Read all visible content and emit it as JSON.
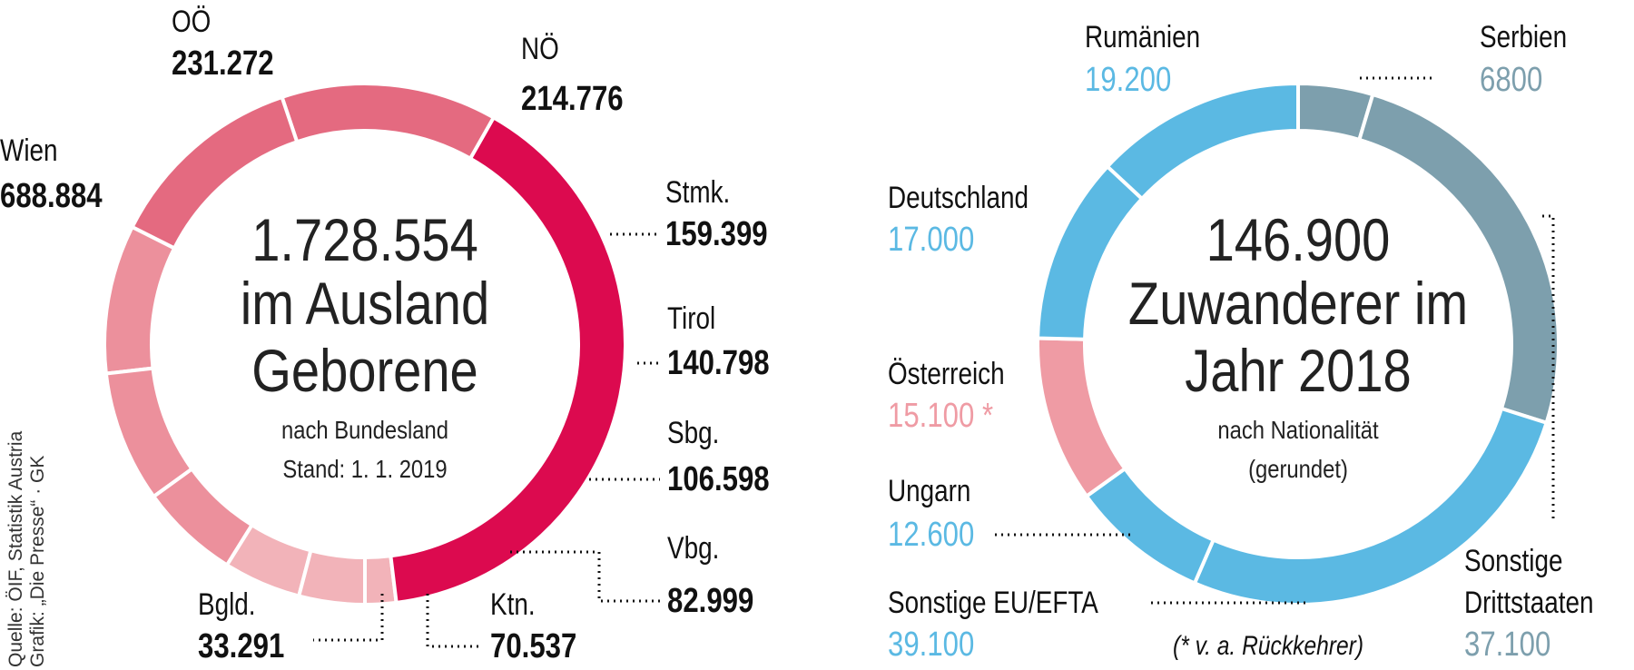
{
  "chart_data": [
    {
      "type": "pie",
      "variant": "donut",
      "center_title": "1.728.554",
      "center_lines": [
        "im Ausland",
        "Geborene"
      ],
      "subtitle_lines": [
        "nach Bundesland",
        "Stand: 1. 1. 2019"
      ],
      "total": 1728554,
      "slices": [
        {
          "label": "Bgld.",
          "value": 33291,
          "value_label": "33.291",
          "color": "#f2b3b9"
        },
        {
          "label": "Wien",
          "value": 688884,
          "value_label": "688.884",
          "color": "#dc0a4f"
        },
        {
          "label": "OÖ",
          "value": 231272,
          "value_label": "231.272",
          "color": "#e46a80"
        },
        {
          "label": "NÖ",
          "value": 214776,
          "value_label": "214.776",
          "color": "#e46a80"
        },
        {
          "label": "Stmk.",
          "value": 159399,
          "value_label": "159.399",
          "color": "#ec909c"
        },
        {
          "label": "Tirol",
          "value": 140798,
          "value_label": "140.798",
          "color": "#ec909c"
        },
        {
          "label": "Sbg.",
          "value": 106598,
          "value_label": "106.598",
          "color": "#ec909c"
        },
        {
          "label": "Vbg.",
          "value": 82999,
          "value_label": "82.999",
          "color": "#f2b3b9"
        },
        {
          "label": "Ktn.",
          "value": 70537,
          "value_label": "70.537",
          "color": "#f2b3b9"
        }
      ],
      "start": "bottom-ccw-from-Bgld"
    },
    {
      "type": "pie",
      "variant": "donut",
      "center_title": "146.900",
      "center_lines": [
        "Zuwanderer im",
        "Jahr 2018"
      ],
      "subtitle_lines": [
        "nach Nationalität",
        "(gerundet)"
      ],
      "total": 146900,
      "slices": [
        {
          "label": "Serbien",
          "value": 6800,
          "value_label": "6800",
          "color": "#7d9fad"
        },
        {
          "label": "Sonstige Drittstaaten",
          "value": 37100,
          "value_label": "37.100",
          "color": "#7d9fad"
        },
        {
          "label": "Sonstige EU/EFTA",
          "value": 39100,
          "value_label": "39.100",
          "color": "#5bb9e3"
        },
        {
          "label": "Ungarn",
          "value": 12600,
          "value_label": "12.600",
          "color": "#5bb9e3"
        },
        {
          "label": "Österreich",
          "value": 15100,
          "value_label": "15.100 *",
          "color": "#ef9ba4"
        },
        {
          "label": "Deutschland",
          "value": 17000,
          "value_label": "17.000",
          "color": "#5bb9e3"
        },
        {
          "label": "Rumänien",
          "value": 19200,
          "value_label": "19.200",
          "color": "#5bb9e3"
        }
      ],
      "footnote": "(* v. a. Rückkehrer)"
    }
  ],
  "source": {
    "line1": "Quelle: ÖIF, Statistik Austria",
    "line2": "Grafik: „Die Presse“ · GK"
  },
  "colors": {
    "label_dark": "#111111",
    "value_blue": "#5bb9e3",
    "value_grey": "#7d9fad",
    "value_pink": "#ef9ba4"
  }
}
